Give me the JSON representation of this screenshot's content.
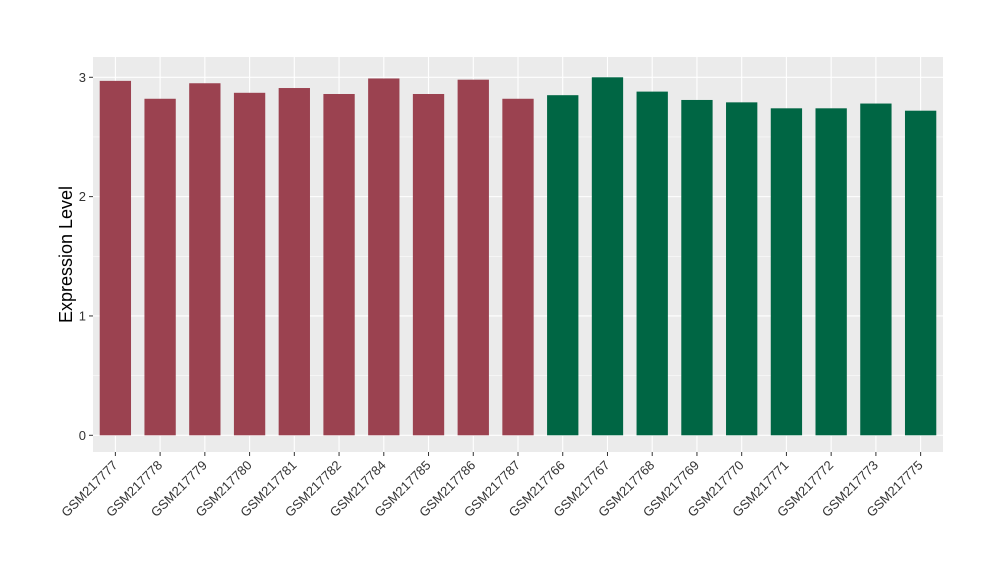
{
  "chart_data": {
    "type": "bar",
    "title": "",
    "xlabel": "",
    "ylabel": "Expression Level",
    "ylim": [
      -0.14,
      3.17
    ],
    "yticks": [
      0,
      1,
      2,
      3
    ],
    "grid": true,
    "categories": [
      "GSM217777",
      "GSM217778",
      "GSM217779",
      "GSM217780",
      "GSM217781",
      "GSM217782",
      "GSM217784",
      "GSM217785",
      "GSM217786",
      "GSM217787",
      "GSM217766",
      "GSM217767",
      "GSM217768",
      "GSM217769",
      "GSM217770",
      "GSM217771",
      "GSM217772",
      "GSM217773",
      "GSM217775"
    ],
    "values": [
      2.97,
      2.82,
      2.95,
      2.87,
      2.91,
      2.86,
      2.99,
      2.86,
      2.98,
      2.82,
      2.85,
      3.0,
      2.88,
      2.81,
      2.79,
      2.74,
      2.74,
      2.78,
      2.72
    ],
    "bar_colors": [
      "#9b4250",
      "#9b4250",
      "#9b4250",
      "#9b4250",
      "#9b4250",
      "#9b4250",
      "#9b4250",
      "#9b4250",
      "#9b4250",
      "#9b4250",
      "#006644",
      "#006644",
      "#006644",
      "#006644",
      "#006644",
      "#006644",
      "#006644",
      "#006644",
      "#006644"
    ],
    "panel_background": "#ebebeb",
    "grid_color": "#ffffff"
  }
}
